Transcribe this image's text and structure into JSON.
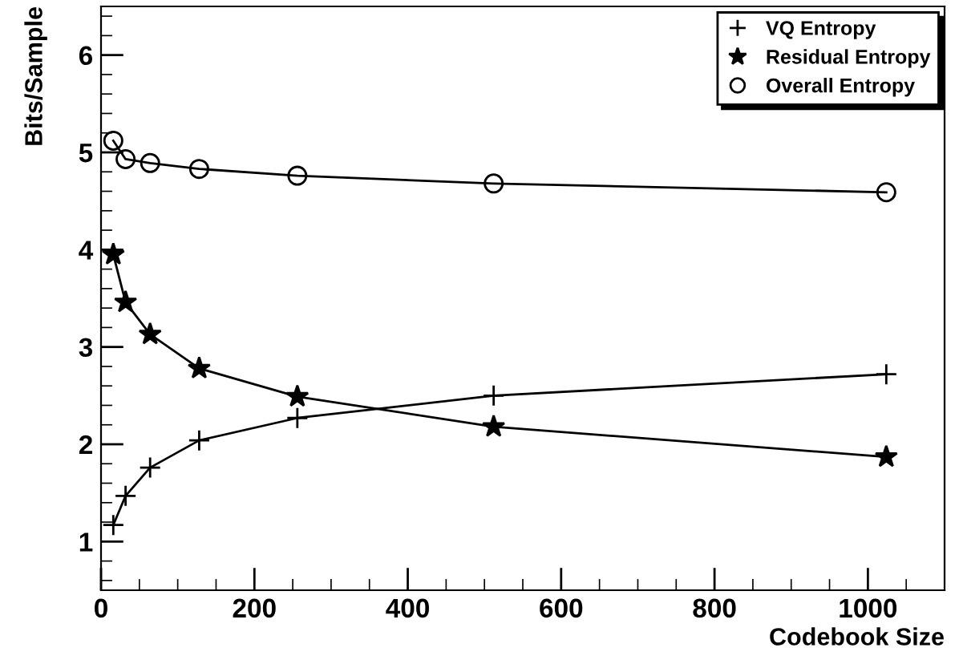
{
  "chart_data": {
    "type": "line",
    "xlabel": "Codebook Size",
    "ylabel": "Bits/Sample",
    "xlim": [
      0,
      1100
    ],
    "xticks": [
      0,
      200,
      400,
      600,
      800,
      1000
    ],
    "ylim": [
      0.5,
      6.5
    ],
    "yticks": [
      1,
      2,
      3,
      4,
      5,
      6
    ],
    "legend": "top right",
    "grid": false,
    "series": [
      {
        "name": "VQ Entropy",
        "color": "#000000",
        "marker": "cross",
        "x": [
          16,
          32,
          64,
          128,
          256,
          512,
          1024
        ],
        "values": [
          1.17,
          1.47,
          1.76,
          2.04,
          2.27,
          2.5,
          2.72
        ]
      },
      {
        "name": "Residual Entropy",
        "color": "#000000",
        "marker": "star",
        "x": [
          16,
          32,
          64,
          128,
          256,
          512,
          1024
        ],
        "values": [
          3.95,
          3.46,
          3.13,
          2.78,
          2.49,
          2.18,
          1.87
        ]
      },
      {
        "name": "Overall Entropy",
        "color": "#000000",
        "marker": "circle",
        "x": [
          16,
          32,
          64,
          128,
          256,
          512,
          1024
        ],
        "values": [
          5.12,
          4.93,
          4.89,
          4.83,
          4.76,
          4.68,
          4.59
        ]
      }
    ]
  }
}
